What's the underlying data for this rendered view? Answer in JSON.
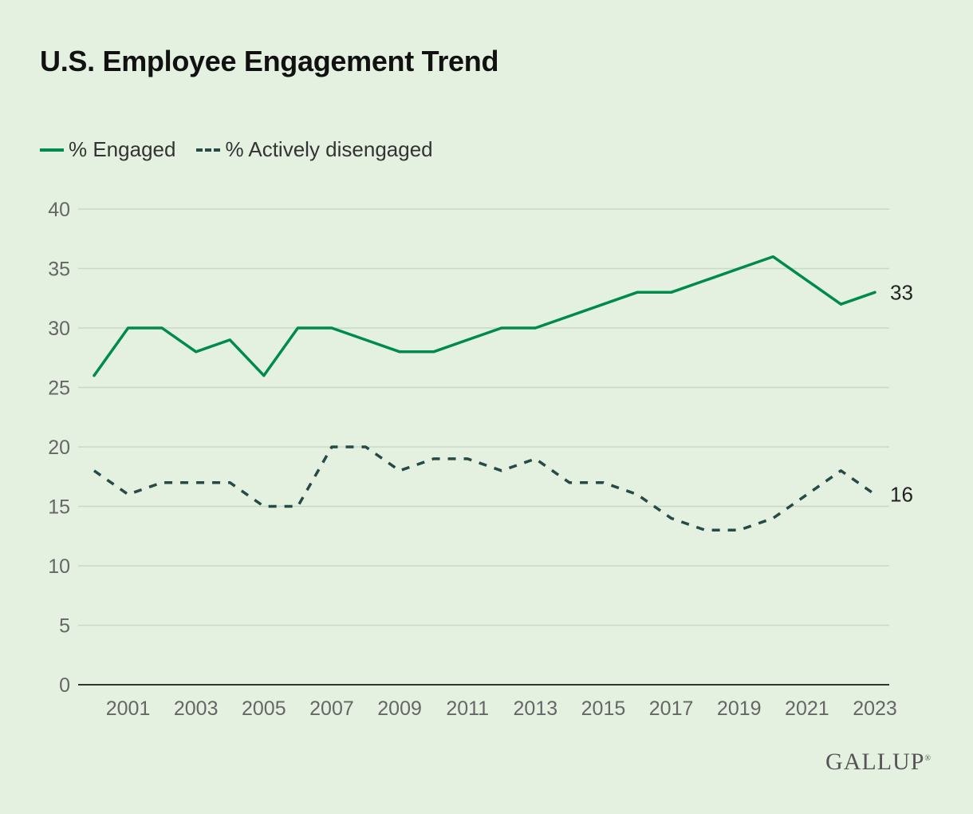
{
  "chart_data": {
    "type": "line",
    "title": "U.S. Employee Engagement Trend",
    "x": [
      2000,
      2001,
      2002,
      2003,
      2004,
      2005,
      2006,
      2007,
      2008,
      2009,
      2010,
      2011,
      2012,
      2013,
      2014,
      2015,
      2016,
      2017,
      2018,
      2019,
      2020,
      2021,
      2022,
      2023
    ],
    "xticks": [
      "2001",
      "2003",
      "2005",
      "2007",
      "2009",
      "2011",
      "2013",
      "2015",
      "2017",
      "2019",
      "2021",
      "2023"
    ],
    "yticks": [
      "0",
      "5",
      "10",
      "15",
      "20",
      "25",
      "30",
      "35",
      "40"
    ],
    "ylim": [
      0,
      40
    ],
    "grid": true,
    "legend_placement": "top-left",
    "series": [
      {
        "name": "% Engaged",
        "style": "solid",
        "color": "#008a4b",
        "end_label": "33",
        "values": [
          26,
          30,
          30,
          28,
          29,
          26,
          30,
          30,
          29,
          28,
          28,
          29,
          30,
          30,
          31,
          32,
          33,
          33,
          34,
          35,
          36,
          34,
          32,
          33
        ]
      },
      {
        "name": "% Actively disengaged",
        "style": "dashed",
        "color": "#264a45",
        "end_label": "16",
        "values": [
          18,
          16,
          17,
          17,
          17,
          15,
          15,
          20,
          20,
          18,
          19,
          19,
          18,
          19,
          17,
          17,
          16,
          14,
          13,
          13,
          14,
          16,
          18,
          16
        ]
      }
    ]
  },
  "brand": {
    "logo": "GALLUP"
  }
}
